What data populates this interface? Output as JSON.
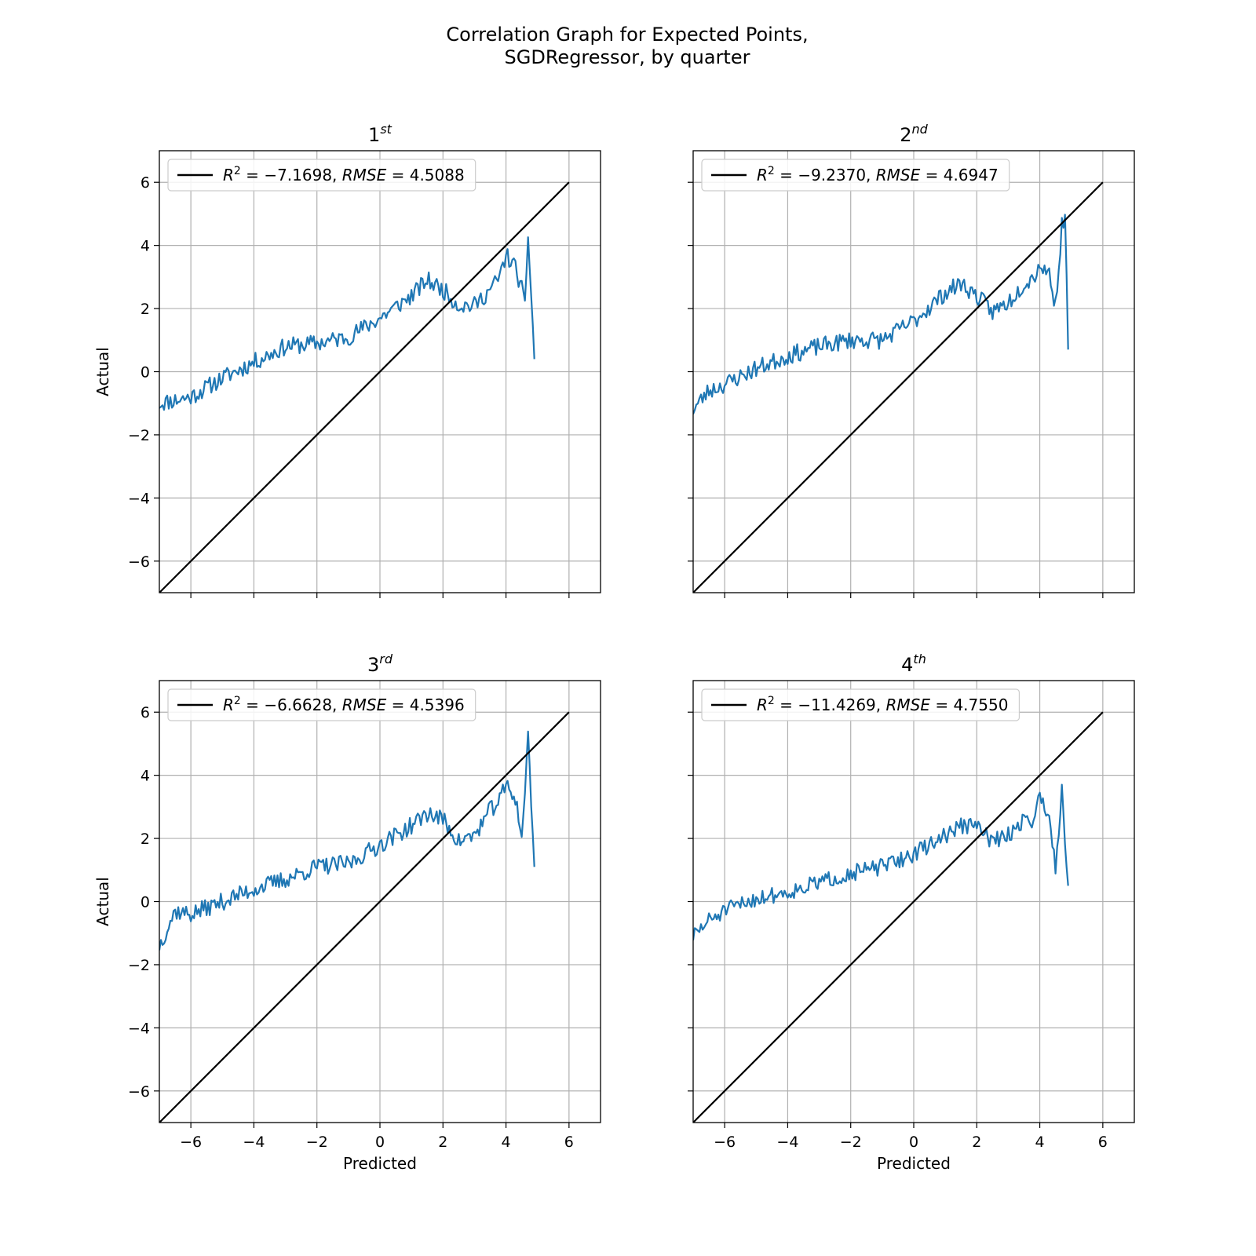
{
  "figure": {
    "title_line1": "Correlation Graph for Expected Points,",
    "title_line2": "SGDRegressor, by quarter"
  },
  "chart_data": [
    {
      "type": "line",
      "title_base": "1",
      "title_sup": "st",
      "xlabel": "",
      "ylabel": "Actual",
      "xlim": [
        -7,
        7
      ],
      "ylim": [
        -7,
        7
      ],
      "xticks": [
        -6,
        -4,
        -2,
        0,
        2,
        4,
        6
      ],
      "yticks": [
        -6,
        -4,
        -2,
        0,
        2,
        4,
        6
      ],
      "grid": true,
      "legend_position": "upper-left",
      "reference_line": {
        "x": [
          -7,
          6
        ],
        "y": [
          -7,
          6
        ],
        "color": "#000000",
        "label": "R² = −7.1698, RMSE = 4.5088",
        "r2": "−7.1698",
        "rmse": "4.5088"
      },
      "series": [
        {
          "color": "#1f77b4",
          "anchors": [
            [
              -7,
              -1.0
            ],
            [
              -6,
              -0.8
            ],
            [
              -5,
              -0.2
            ],
            [
              -4,
              0.3
            ],
            [
              -3,
              0.8
            ],
            [
              -2,
              0.9
            ],
            [
              -1,
              1.1
            ],
            [
              0,
              1.7
            ],
            [
              1,
              2.4
            ],
            [
              1.5,
              2.9
            ],
            [
              2,
              2.6
            ],
            [
              2.5,
              2.1
            ],
            [
              3,
              2.1
            ],
            [
              3.5,
              2.6
            ],
            [
              3.8,
              3.0
            ],
            [
              4.0,
              3.7
            ],
            [
              4.3,
              3.3
            ],
            [
              4.5,
              2.6
            ],
            [
              4.6,
              2.0
            ],
            [
              4.7,
              4.4
            ],
            [
              4.9,
              0.4
            ]
          ],
          "noise": 0.28,
          "seed": 11
        }
      ]
    },
    {
      "type": "line",
      "title_base": "2",
      "title_sup": "nd",
      "xlabel": "",
      "ylabel": "",
      "xlim": [
        -7,
        7
      ],
      "ylim": [
        -7,
        7
      ],
      "xticks": [
        -6,
        -4,
        -2,
        0,
        2,
        4,
        6
      ],
      "yticks": [
        -6,
        -4,
        -2,
        0,
        2,
        4,
        6
      ],
      "grid": true,
      "legend_position": "upper-left",
      "reference_line": {
        "x": [
          -7,
          6
        ],
        "y": [
          -7,
          6
        ],
        "color": "#000000",
        "label": "R² = −9.2370, RMSE = 4.6947",
        "r2": "−9.2370",
        "rmse": "4.6947"
      },
      "series": [
        {
          "color": "#1f77b4",
          "anchors": [
            [
              -7,
              -1.2
            ],
            [
              -6.5,
              -0.6
            ],
            [
              -6,
              -0.4
            ],
            [
              -5,
              0.1
            ],
            [
              -4,
              0.5
            ],
            [
              -3,
              0.8
            ],
            [
              -2,
              1.0
            ],
            [
              -1,
              1.0
            ],
            [
              0,
              1.6
            ],
            [
              1,
              2.5
            ],
            [
              1.5,
              2.8
            ],
            [
              2,
              2.4
            ],
            [
              2.5,
              1.9
            ],
            [
              3,
              2.2
            ],
            [
              3.5,
              2.8
            ],
            [
              3.8,
              3.0
            ],
            [
              4.0,
              3.4
            ],
            [
              4.3,
              3.1
            ],
            [
              4.5,
              2.1
            ],
            [
              4.7,
              4.6
            ],
            [
              4.8,
              5.0
            ],
            [
              4.9,
              0.7
            ]
          ],
          "noise": 0.28,
          "seed": 23
        }
      ]
    },
    {
      "type": "line",
      "title_base": "3",
      "title_sup": "rd",
      "xlabel": "Predicted",
      "ylabel": "Actual",
      "xlim": [
        -7,
        7
      ],
      "ylim": [
        -7,
        7
      ],
      "xticks": [
        -6,
        -4,
        -2,
        0,
        2,
        4,
        6
      ],
      "yticks": [
        -6,
        -4,
        -2,
        0,
        2,
        4,
        6
      ],
      "grid": true,
      "legend_position": "upper-left",
      "reference_line": {
        "x": [
          -7,
          6
        ],
        "y": [
          -7,
          6
        ],
        "color": "#000000",
        "label": "R² = −6.6628, RMSE = 4.5396",
        "r2": "−6.6628",
        "rmse": "4.5396"
      },
      "series": [
        {
          "color": "#1f77b4",
          "anchors": [
            [
              -7,
              -1.4
            ],
            [
              -6.5,
              -0.3
            ],
            [
              -6,
              -0.4
            ],
            [
              -5,
              0.0
            ],
            [
              -4,
              0.4
            ],
            [
              -3,
              0.7
            ],
            [
              -2,
              1.1
            ],
            [
              -1,
              1.2
            ],
            [
              0,
              1.8
            ],
            [
              1,
              2.4
            ],
            [
              1.5,
              2.8
            ],
            [
              2,
              2.6
            ],
            [
              2.5,
              1.9
            ],
            [
              3,
              2.1
            ],
            [
              3.5,
              2.9
            ],
            [
              3.8,
              3.2
            ],
            [
              4.0,
              3.7
            ],
            [
              4.3,
              3.3
            ],
            [
              4.5,
              2.0
            ],
            [
              4.7,
              5.2
            ],
            [
              4.9,
              1.1
            ]
          ],
          "noise": 0.28,
          "seed": 37
        }
      ]
    },
    {
      "type": "line",
      "title_base": "4",
      "title_sup": "th",
      "xlabel": "Predicted",
      "ylabel": "",
      "xlim": [
        -7,
        7
      ],
      "ylim": [
        -7,
        7
      ],
      "xticks": [
        -6,
        -4,
        -2,
        0,
        2,
        4,
        6
      ],
      "yticks": [
        -6,
        -4,
        -2,
        0,
        2,
        4,
        6
      ],
      "grid": true,
      "legend_position": "upper-left",
      "reference_line": {
        "x": [
          -7,
          6
        ],
        "y": [
          -7,
          6
        ],
        "color": "#000000",
        "label": "R² = −11.4269, RMSE = 4.7550",
        "r2": "−11.4269",
        "rmse": "4.7550"
      },
      "series": [
        {
          "color": "#1f77b4",
          "anchors": [
            [
              -7,
              -1.1
            ],
            [
              -6.5,
              -0.6
            ],
            [
              -6,
              -0.3
            ],
            [
              -5,
              0.1
            ],
            [
              -4,
              0.3
            ],
            [
              -3,
              0.6
            ],
            [
              -2,
              0.9
            ],
            [
              -1,
              1.1
            ],
            [
              0,
              1.5
            ],
            [
              1,
              2.1
            ],
            [
              1.5,
              2.4
            ],
            [
              2,
              2.4
            ],
            [
              2.5,
              1.9
            ],
            [
              3,
              2.1
            ],
            [
              3.5,
              2.6
            ],
            [
              3.8,
              2.6
            ],
            [
              4.0,
              3.3
            ],
            [
              4.3,
              2.8
            ],
            [
              4.5,
              1.0
            ],
            [
              4.7,
              3.6
            ],
            [
              4.9,
              0.5
            ]
          ],
          "noise": 0.26,
          "seed": 51
        }
      ]
    }
  ]
}
